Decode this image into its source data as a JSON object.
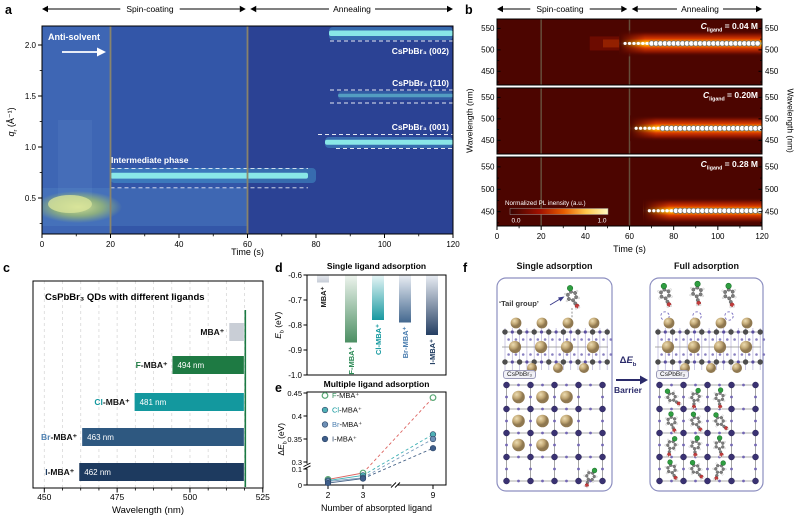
{
  "panels": {
    "a": {
      "label": "a",
      "phase_left": "Spin-coating",
      "phase_right": "Annealing",
      "antisolvent": "Anti-solvent",
      "xlabel": "Time (s)",
      "ylabel_base": "q",
      "ylabel_sub": "r",
      "ylabel_rest": " (Å⁻¹)",
      "x_ticks": [
        "0",
        "20",
        "40",
        "60",
        "80",
        "100",
        "120"
      ],
      "y_ticks": [
        "0.5",
        "1.0",
        "1.5",
        "2.0"
      ],
      "annotations": {
        "intermediate": "Intermediate phase",
        "peak_002": "CsPbBr₃ (002)",
        "peak_110": "CsPbBr₃ (110)",
        "peak_001": "CsPbBr₃ (001)"
      }
    },
    "b": {
      "label": "b",
      "phase_left": "Spin-coating",
      "phase_right": "Annealing",
      "xlabel": "Time (s)",
      "ylabel_left": "Wavelength (nm)",
      "ylabel_right": "Wavelength (nm)",
      "x_ticks": [
        "0",
        "20",
        "40",
        "60",
        "80",
        "100",
        "120"
      ],
      "y_ticks": [
        "550",
        "500",
        "450"
      ],
      "subpanels": [
        {
          "conc_base": "C",
          "conc_sub": "ligand",
          "conc_rest": " = 0.04 M"
        },
        {
          "conc_base": "C",
          "conc_sub": "ligand",
          "conc_rest": " = 0.20M"
        },
        {
          "conc_base": "C",
          "conc_sub": "ligand",
          "conc_rest": " = 0.28 M"
        }
      ],
      "colorbar": {
        "label": "Normalized PL inensity (a.u.)",
        "min": "0.0",
        "max": "1.0"
      }
    },
    "c": {
      "label": "c",
      "title": "CsPbBr₃ QDs with different ligands",
      "xlabel": "Wavelength (nm)",
      "x_ticks": [
        "450",
        "475",
        "500",
        "525"
      ]
    },
    "d": {
      "label": "d",
      "title": "Single ligand adsorption",
      "ylabel_base": "E",
      "ylabel_sub": "b",
      "ylabel_rest": " (eV)",
      "y_ticks": [
        "-0.6",
        "-0.7",
        "-0.8",
        "-0.9",
        "-1.0"
      ]
    },
    "e": {
      "label": "e",
      "title": "Multiple ligand adsorption",
      "ylabel_delta": "Δ",
      "ylabel_base": "E",
      "ylabel_sub": "b",
      "ylabel_rest": " (eV)",
      "xlabel": "Number of absorpted ligand",
      "x_ticks": [
        "2",
        "3",
        "9"
      ],
      "y_ticks": [
        "0",
        "0.1",
        "0.3",
        "0.35",
        "0.4",
        "0.45"
      ]
    },
    "f": {
      "label": "f",
      "title_left": "Single adsorption",
      "title_right": "Full adsorption",
      "tail_group": "‘Tail group’",
      "crystal_left": "CsPbBr₃",
      "crystal_right": "CsPbBr₃",
      "delta_prefix": "Δ",
      "delta_base": "E",
      "delta_sub": "b",
      "barrier": "Barrier"
    }
  },
  "chart_data": [
    {
      "id": "a",
      "type": "heatmap",
      "title": "",
      "xlabel": "Time (s)",
      "ylabel": "qr (Å⁻¹)",
      "x_range_s": [
        0,
        120
      ],
      "y_range": [
        0.15,
        2.19
      ],
      "x_ticks": [
        0,
        20,
        40,
        60,
        80,
        100,
        120
      ],
      "y_ticks": [
        0.5,
        1.0,
        1.5,
        2.0
      ],
      "event_lines_s": [
        20,
        60
      ],
      "phases": [
        {
          "label": "Spin-coating",
          "t_span_s": [
            0,
            60
          ]
        },
        {
          "label": "Annealing",
          "t_span_s": [
            60,
            120
          ]
        }
      ],
      "features": [
        {
          "label": "Anti-solvent",
          "t_s": 20
        },
        {
          "label": "Intermediate phase",
          "q_center": 0.72,
          "t_span_s": [
            20,
            90
          ]
        },
        {
          "label": "CsPbBr₃ (001)",
          "q_center": 1.05,
          "t_span_s": [
            85,
            120
          ]
        },
        {
          "label": "CsPbBr₃ (110)",
          "q_center": 1.5,
          "t_span_s": [
            90,
            120
          ]
        },
        {
          "label": "CsPbBr₃ (002)",
          "q_center": 2.12,
          "t_span_s": [
            85,
            120
          ]
        }
      ]
    },
    {
      "id": "b",
      "type": "heatmap",
      "xlabel": "Time (s)",
      "ylabel": "Wavelength (nm)",
      "x_range_s": [
        0,
        120
      ],
      "wavelength_ticks_nm": [
        450,
        500,
        550
      ],
      "event_lines_s": [
        20,
        60
      ],
      "series": [
        {
          "c_ligand": "0.04 M",
          "peak_nm": 515,
          "trace_start_s": 58
        },
        {
          "c_ligand": "0.20M",
          "peak_nm": 478,
          "trace_start_s": 63
        },
        {
          "c_ligand": "0.28 M",
          "peak_nm": 452,
          "trace_start_s": 69
        }
      ],
      "colorbar": {
        "label": "Normalized PL inensity (a.u.)",
        "range": [
          0.0,
          1.0
        ]
      }
    },
    {
      "id": "c",
      "type": "bar",
      "title": "CsPbBr₃ QDs with different ligands",
      "xlabel": "Wavelength (nm)",
      "xlim": [
        445,
        525
      ],
      "x_ticks": [
        450,
        475,
        500,
        525
      ],
      "reference_line_nm": 519,
      "bars": [
        {
          "halide": "",
          "rest": "MBA⁺",
          "span_nm": [
            513.5,
            518.5
          ],
          "label": "",
          "bar_color": "#c9ced6",
          "name_color": "#111111"
        },
        {
          "halide": "F",
          "rest": "-MBA⁺",
          "span_nm": [
            494,
            518.5
          ],
          "label": "494 nm",
          "bar_color": "#1e7a43",
          "name_color": "#1e7a43"
        },
        {
          "halide": "Cl",
          "rest": "-MBA⁺",
          "span_nm": [
            481,
            518.5
          ],
          "label": "481 nm",
          "bar_color": "#13989e",
          "name_color": "#13989e"
        },
        {
          "halide": "Br",
          "rest": "-MBA⁺",
          "span_nm": [
            463,
            518.5
          ],
          "label": "463 nm",
          "bar_color": "#2e5880",
          "name_color": "#4d7fb0"
        },
        {
          "halide": "I",
          "rest": "-MBA⁺",
          "span_nm": [
            462,
            518.5
          ],
          "label": "462 nm",
          "bar_color": "#1d3a5f",
          "name_color": "#1d3a5f"
        }
      ]
    },
    {
      "id": "d",
      "type": "bar",
      "title": "Single ligand adsorption",
      "ylabel": "Eb (eV)",
      "ylim": [
        -0.6,
        -1.0
      ],
      "y_ticks": [
        -0.6,
        -0.7,
        -0.8,
        -0.9,
        -1.0
      ],
      "bars": [
        {
          "halide": "",
          "rest": "MBA⁺",
          "value_eV": -0.63,
          "top_color": "#e8ebef",
          "bottom_color": "#c6ccd6",
          "label_color": "#222222"
        },
        {
          "halide": "F",
          "rest": "-MBA⁺",
          "value_eV": -0.87,
          "top_color": "#eef4ee",
          "bottom_color": "#4c8f63",
          "label_color": "#2e8b57"
        },
        {
          "halide": "Cl",
          "rest": "-MBA⁺",
          "value_eV": -0.78,
          "top_color": "#e8f6f7",
          "bottom_color": "#1899a0",
          "label_color": "#13989e"
        },
        {
          "halide": "Br",
          "rest": "-MBA⁺",
          "value_eV": -0.79,
          "top_color": "#eaeef4",
          "bottom_color": "#44688f",
          "label_color": "#4d7fb0"
        },
        {
          "halide": "I",
          "rest": "-MBA⁺",
          "value_eV": -0.84,
          "top_color": "#e9edf3",
          "bottom_color": "#253f63",
          "label_color": "#1d3a5f"
        }
      ]
    },
    {
      "id": "e",
      "type": "scatter",
      "title": "Multiple ligand adsorption",
      "ylabel": "ΔEb (eV)",
      "xlabel": "Number of absorpted ligand",
      "x": [
        2,
        3,
        9
      ],
      "y_ticks": [
        0,
        0.1,
        0.3,
        0.35,
        0.4,
        0.45
      ],
      "axis_breaks": {
        "x_between": [
          3,
          9
        ],
        "y_between": [
          0.1,
          0.3
        ]
      },
      "series": [
        {
          "halide": "F",
          "rest": "-MBA⁺",
          "values": [
            0.035,
            0.075,
            0.44
          ],
          "marker": "open",
          "marker_color": "#57a773",
          "line_color": "#d9534f",
          "text_color": "#2e8b57"
        },
        {
          "halide": "Cl",
          "rest": "-MBA⁺",
          "values": [
            0.028,
            0.06,
            0.36
          ],
          "marker": "filled",
          "marker_color": "#4fb0b5",
          "line_color": "#2ba8ad",
          "text_color": "#13989e"
        },
        {
          "halide": "Br",
          "rest": "-MBA⁺",
          "values": [
            0.022,
            0.045,
            0.35
          ],
          "marker": "filled",
          "marker_color": "#6d8fb5",
          "line_color": "#6b8fb3",
          "text_color": "#4d7fb0"
        },
        {
          "halide": "I",
          "rest": "-MBA⁺",
          "values": [
            0.012,
            0.04,
            0.33
          ],
          "marker": "filled",
          "marker_color": "#3f5e8a",
          "line_color": "#31517a",
          "text_color": "#1d3a5f"
        }
      ]
    }
  ],
  "colors": {
    "heat_a_bg": "#3356a8",
    "heat_b_bg": "#4c0500",
    "streak_cyan": "#8deeea",
    "accent_box": "#8d8fc0",
    "arrow_navy": "#2a2a6a",
    "event_line_a": "#8d8668",
    "event_line_b": "#6b5a44"
  }
}
